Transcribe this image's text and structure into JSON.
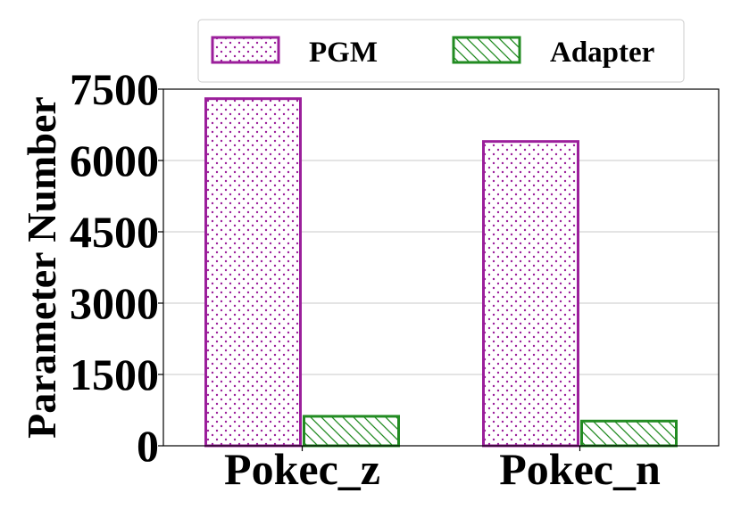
{
  "chart_data": {
    "type": "bar",
    "categories": [
      "Pokec_z",
      "Pokec_n"
    ],
    "series": [
      {
        "name": "PGM",
        "values": [
          7300,
          6400
        ],
        "color": "#9b1f9b",
        "pattern": "dots"
      },
      {
        "name": "Adapter",
        "values": [
          620,
          520
        ],
        "color": "#228b22",
        "pattern": "diagonal-hatch"
      }
    ],
    "ylabel": "Parameter Number",
    "yticks": [
      "0",
      "1500",
      "3000",
      "4500",
      "6000",
      "7500"
    ],
    "ylim": [
      0,
      7500
    ],
    "grid": "horizontal",
    "legend": "top-center"
  }
}
